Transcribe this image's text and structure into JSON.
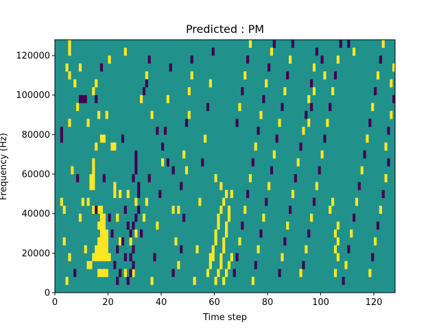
{
  "chart_data": {
    "type": "heatmap",
    "title": "Predicted : PM",
    "xlabel": "Time step",
    "ylabel": "Frequency (Hz)",
    "xlim": [
      0,
      128
    ],
    "ylim": [
      0,
      128000
    ],
    "xticks": [
      0,
      20,
      40,
      60,
      80,
      100,
      120
    ],
    "yticks": [
      0,
      20000,
      40000,
      60000,
      80000,
      100000,
      120000
    ],
    "xtick_labels": [
      "0",
      "20",
      "40",
      "60",
      "80",
      "100",
      "120"
    ],
    "ytick_labels": [
      "0",
      "20000",
      "40000",
      "60000",
      "80000",
      "100000",
      "120000"
    ],
    "grid": false,
    "colormap": "viridis",
    "n_time_steps": 128,
    "n_freq_bins": 32,
    "bin_height_hz": 4000,
    "background_value": 0,
    "colors": {
      "low": "#440154",
      "mid": "#21918c",
      "high": "#fde725"
    },
    "cells": [
      [
        4,
        1,
        1
      ],
      [
        5,
        4,
        1
      ],
      [
        7,
        2,
        -1
      ],
      [
        6,
        15,
        1
      ],
      [
        5,
        21,
        1
      ],
      [
        5,
        27,
        1
      ],
      [
        4,
        28,
        1
      ],
      [
        12,
        3,
        1
      ],
      [
        13,
        3,
        1
      ],
      [
        14,
        4,
        1
      ],
      [
        15,
        4,
        1
      ],
      [
        16,
        4,
        1
      ],
      [
        17,
        4,
        1
      ],
      [
        18,
        4,
        1
      ],
      [
        19,
        4,
        1
      ],
      [
        20,
        4,
        1
      ],
      [
        16,
        2,
        1
      ],
      [
        17,
        2,
        1
      ],
      [
        18,
        2,
        1
      ],
      [
        19,
        2,
        1
      ],
      [
        15,
        5,
        1
      ],
      [
        16,
        5,
        1
      ],
      [
        17,
        5,
        1
      ],
      [
        18,
        5,
        1
      ],
      [
        19,
        5,
        1
      ],
      [
        16,
        6,
        1
      ],
      [
        17,
        6,
        1
      ],
      [
        18,
        6,
        1
      ],
      [
        19,
        6,
        1
      ],
      [
        17,
        7,
        1
      ],
      [
        18,
        7,
        1
      ],
      [
        19,
        7,
        1
      ],
      [
        16,
        8,
        1
      ],
      [
        17,
        8,
        1
      ],
      [
        18,
        8,
        1
      ],
      [
        17,
        9,
        1
      ],
      [
        18,
        9,
        1
      ],
      [
        14,
        10,
        1
      ],
      [
        15,
        10,
        1
      ],
      [
        16,
        10,
        1
      ],
      [
        17,
        10,
        1
      ],
      [
        13,
        13,
        1
      ],
      [
        14,
        13,
        1
      ],
      [
        13,
        14,
        1
      ],
      [
        14,
        14,
        1
      ],
      [
        14,
        15,
        1
      ],
      [
        14,
        16,
        1
      ],
      [
        15,
        18,
        1
      ],
      [
        17,
        19,
        1
      ],
      [
        18,
        19,
        1
      ],
      [
        8,
        14,
        -1
      ],
      [
        12,
        11,
        1
      ],
      [
        10,
        11,
        1
      ],
      [
        15,
        10,
        -1
      ],
      [
        11,
        5,
        1
      ],
      [
        9,
        9,
        1
      ],
      [
        3,
        10,
        1
      ],
      [
        3,
        6,
        1
      ],
      [
        2,
        11,
        1
      ],
      [
        2,
        19,
        -1
      ],
      [
        2,
        20,
        -1
      ],
      [
        5,
        30,
        1
      ],
      [
        5,
        31,
        1
      ],
      [
        7,
        26,
        1
      ],
      [
        8,
        23,
        1
      ],
      [
        9,
        24,
        -1
      ],
      [
        10,
        24,
        -1
      ],
      [
        11,
        24,
        -1
      ],
      [
        9,
        28,
        1
      ],
      [
        12,
        21,
        1
      ],
      [
        14,
        25,
        1
      ],
      [
        15,
        24,
        -1
      ],
      [
        16,
        22,
        1
      ],
      [
        19,
        22,
        1
      ],
      [
        21,
        18,
        1
      ],
      [
        22,
        18,
        1
      ],
      [
        22,
        13,
        1
      ],
      [
        23,
        9,
        1
      ],
      [
        23,
        5,
        -1
      ],
      [
        24,
        6,
        1
      ],
      [
        24,
        12,
        1
      ],
      [
        25,
        19,
        -1
      ],
      [
        26,
        2,
        1
      ],
      [
        27,
        12,
        1
      ],
      [
        28,
        6,
        1
      ],
      [
        29,
        2,
        1
      ],
      [
        29,
        14,
        -1
      ],
      [
        30,
        7,
        1
      ],
      [
        30,
        11,
        1
      ],
      [
        30,
        15,
        -1
      ],
      [
        30,
        16,
        -1
      ],
      [
        30,
        17,
        -1
      ],
      [
        31,
        12,
        -1
      ],
      [
        31,
        13,
        -1
      ],
      [
        27,
        1,
        -1
      ],
      [
        28,
        2,
        -1
      ],
      [
        29,
        3,
        -1
      ],
      [
        28,
        4,
        -1
      ],
      [
        29,
        5,
        -1
      ],
      [
        28,
        7,
        -1
      ],
      [
        29,
        8,
        -1
      ],
      [
        30,
        9,
        -1
      ],
      [
        31,
        10,
        -1
      ],
      [
        26,
        10,
        -1
      ],
      [
        27,
        8,
        -1
      ],
      [
        25,
        6,
        -1
      ],
      [
        26,
        4,
        -1
      ],
      [
        24,
        2,
        -1
      ],
      [
        23,
        1,
        -1
      ],
      [
        22,
        3,
        -1
      ],
      [
        21,
        7,
        -1
      ],
      [
        20,
        9,
        -1
      ],
      [
        32,
        7,
        -1
      ],
      [
        33,
        9,
        1
      ],
      [
        34,
        11,
        1
      ],
      [
        35,
        14,
        -1
      ],
      [
        32,
        24,
        1
      ],
      [
        33,
        25,
        -1
      ],
      [
        34,
        27,
        1
      ],
      [
        35,
        29,
        -1
      ],
      [
        36,
        1,
        1
      ],
      [
        37,
        4,
        -1
      ],
      [
        38,
        8,
        1
      ],
      [
        39,
        12,
        -1
      ],
      [
        40,
        16,
        1
      ],
      [
        41,
        20,
        -1
      ],
      [
        42,
        24,
        1
      ],
      [
        43,
        28,
        -1
      ],
      [
        44,
        2,
        -1
      ],
      [
        45,
        6,
        1
      ],
      [
        46,
        10,
        1
      ],
      [
        47,
        13,
        -1
      ],
      [
        48,
        17,
        1
      ],
      [
        49,
        21,
        -1
      ],
      [
        50,
        25,
        1
      ],
      [
        51,
        29,
        -1
      ],
      [
        46,
        3,
        1
      ],
      [
        47,
        5,
        -1
      ],
      [
        48,
        9,
        -1
      ],
      [
        49,
        15,
        1
      ],
      [
        50,
        22,
        1
      ],
      [
        51,
        27,
        1
      ],
      [
        52,
        1,
        1
      ],
      [
        53,
        5,
        1
      ],
      [
        54,
        11,
        1
      ],
      [
        55,
        16,
        -1
      ],
      [
        56,
        19,
        1
      ],
      [
        57,
        23,
        -1
      ],
      [
        58,
        26,
        1
      ],
      [
        59,
        30,
        -1
      ],
      [
        57,
        2,
        1
      ],
      [
        58,
        3,
        1
      ],
      [
        58,
        4,
        1
      ],
      [
        59,
        4,
        1
      ],
      [
        59,
        5,
        1
      ],
      [
        60,
        6,
        1
      ],
      [
        60,
        7,
        1
      ],
      [
        61,
        8,
        1
      ],
      [
        61,
        9,
        1
      ],
      [
        62,
        10,
        1
      ],
      [
        61,
        2,
        1
      ],
      [
        62,
        3,
        1
      ],
      [
        62,
        4,
        1
      ],
      [
        63,
        5,
        1
      ],
      [
        63,
        6,
        1
      ],
      [
        64,
        7,
        1
      ],
      [
        64,
        8,
        1
      ],
      [
        65,
        9,
        1
      ],
      [
        65,
        10,
        1
      ],
      [
        66,
        12,
        1
      ],
      [
        60,
        1,
        1
      ],
      [
        63,
        1,
        1
      ],
      [
        64,
        2,
        1
      ],
      [
        65,
        3,
        1
      ],
      [
        66,
        4,
        1
      ],
      [
        60,
        14,
        1
      ],
      [
        62,
        13,
        1
      ],
      [
        63,
        11,
        1
      ],
      [
        64,
        12,
        1
      ],
      [
        67,
        2,
        -1
      ],
      [
        68,
        4,
        -1
      ],
      [
        69,
        6,
        1
      ],
      [
        70,
        8,
        -1
      ],
      [
        71,
        10,
        1
      ],
      [
        72,
        12,
        -1
      ],
      [
        73,
        14,
        1
      ],
      [
        74,
        16,
        -1
      ],
      [
        75,
        18,
        1
      ],
      [
        76,
        20,
        -1
      ],
      [
        77,
        22,
        1
      ],
      [
        78,
        24,
        -1
      ],
      [
        79,
        26,
        1
      ],
      [
        80,
        28,
        -1
      ],
      [
        81,
        30,
        1
      ],
      [
        82,
        31,
        -1
      ],
      [
        68,
        21,
        -1
      ],
      [
        69,
        23,
        1
      ],
      [
        70,
        25,
        -1
      ],
      [
        71,
        27,
        1
      ],
      [
        72,
        29,
        -1
      ],
      [
        73,
        31,
        1
      ],
      [
        74,
        1,
        1
      ],
      [
        75,
        3,
        -1
      ],
      [
        76,
        5,
        1
      ],
      [
        77,
        7,
        -1
      ],
      [
        78,
        9,
        1
      ],
      [
        79,
        11,
        -1
      ],
      [
        80,
        13,
        1
      ],
      [
        81,
        15,
        -1
      ],
      [
        82,
        17,
        1
      ],
      [
        83,
        19,
        -1
      ],
      [
        84,
        21,
        1
      ],
      [
        85,
        23,
        -1
      ],
      [
        86,
        25,
        1
      ],
      [
        87,
        27,
        -1
      ],
      [
        88,
        29,
        1
      ],
      [
        89,
        31,
        -1
      ],
      [
        84,
        2,
        -1
      ],
      [
        85,
        4,
        1
      ],
      [
        86,
        6,
        -1
      ],
      [
        87,
        8,
        1
      ],
      [
        88,
        10,
        -1
      ],
      [
        89,
        12,
        1
      ],
      [
        90,
        14,
        -1
      ],
      [
        91,
        16,
        1
      ],
      [
        92,
        18,
        -1
      ],
      [
        93,
        20,
        1
      ],
      [
        94,
        22,
        -1
      ],
      [
        95,
        24,
        1
      ],
      [
        96,
        26,
        -1
      ],
      [
        97,
        28,
        1
      ],
      [
        98,
        30,
        -1
      ],
      [
        92,
        2,
        1
      ],
      [
        93,
        3,
        -1
      ],
      [
        94,
        5,
        1
      ],
      [
        95,
        7,
        -1
      ],
      [
        96,
        9,
        1
      ],
      [
        97,
        11,
        -1
      ],
      [
        98,
        13,
        1
      ],
      [
        99,
        15,
        -1
      ],
      [
        100,
        17,
        1
      ],
      [
        101,
        19,
        -1
      ],
      [
        102,
        21,
        1
      ],
      [
        103,
        23,
        -1
      ],
      [
        104,
        25,
        1
      ],
      [
        105,
        27,
        -1
      ],
      [
        106,
        29,
        1
      ],
      [
        107,
        31,
        -1
      ],
      [
        105,
        2,
        1
      ],
      [
        106,
        4,
        1
      ],
      [
        105,
        5,
        1
      ],
      [
        106,
        6,
        1
      ],
      [
        105,
        7,
        1
      ],
      [
        106,
        8,
        1
      ],
      [
        103,
        10,
        1
      ],
      [
        104,
        11,
        1
      ],
      [
        108,
        1,
        -1
      ],
      [
        109,
        3,
        1
      ],
      [
        110,
        5,
        -1
      ],
      [
        111,
        7,
        1
      ],
      [
        112,
        9,
        -1
      ],
      [
        113,
        11,
        1
      ],
      [
        114,
        13,
        -1
      ],
      [
        115,
        15,
        1
      ],
      [
        116,
        17,
        -1
      ],
      [
        117,
        19,
        1
      ],
      [
        118,
        21,
        -1
      ],
      [
        119,
        23,
        1
      ],
      [
        120,
        25,
        -1
      ],
      [
        121,
        27,
        1
      ],
      [
        122,
        29,
        -1
      ],
      [
        123,
        31,
        1
      ],
      [
        118,
        2,
        1
      ],
      [
        119,
        4,
        -1
      ],
      [
        120,
        6,
        1
      ],
      [
        121,
        8,
        -1
      ],
      [
        122,
        10,
        1
      ],
      [
        123,
        12,
        -1
      ],
      [
        124,
        14,
        1
      ],
      [
        125,
        16,
        -1
      ],
      [
        124,
        18,
        1
      ],
      [
        125,
        20,
        -1
      ],
      [
        126,
        22,
        1
      ],
      [
        127,
        24,
        -1
      ],
      [
        126,
        26,
        1
      ],
      [
        127,
        28,
        1
      ],
      [
        110,
        31,
        -1
      ],
      [
        112,
        30,
        1
      ],
      [
        100,
        29,
        -1
      ],
      [
        101,
        27,
        1
      ],
      [
        97,
        25,
        1
      ],
      [
        96,
        23,
        -1
      ],
      [
        95,
        21,
        1
      ],
      [
        44,
        10,
        1
      ],
      [
        44,
        15,
        -1
      ],
      [
        42,
        16,
        -1
      ],
      [
        40,
        18,
        -1
      ],
      [
        38,
        20,
        -1
      ],
      [
        36,
        22,
        1
      ],
      [
        34,
        26,
        -1
      ],
      [
        26,
        30,
        1
      ],
      [
        20,
        29,
        1
      ],
      [
        17,
        28,
        -1
      ],
      [
        15,
        26,
        1
      ],
      [
        22,
        12,
        1
      ],
      [
        18,
        14,
        -1
      ]
    ]
  }
}
